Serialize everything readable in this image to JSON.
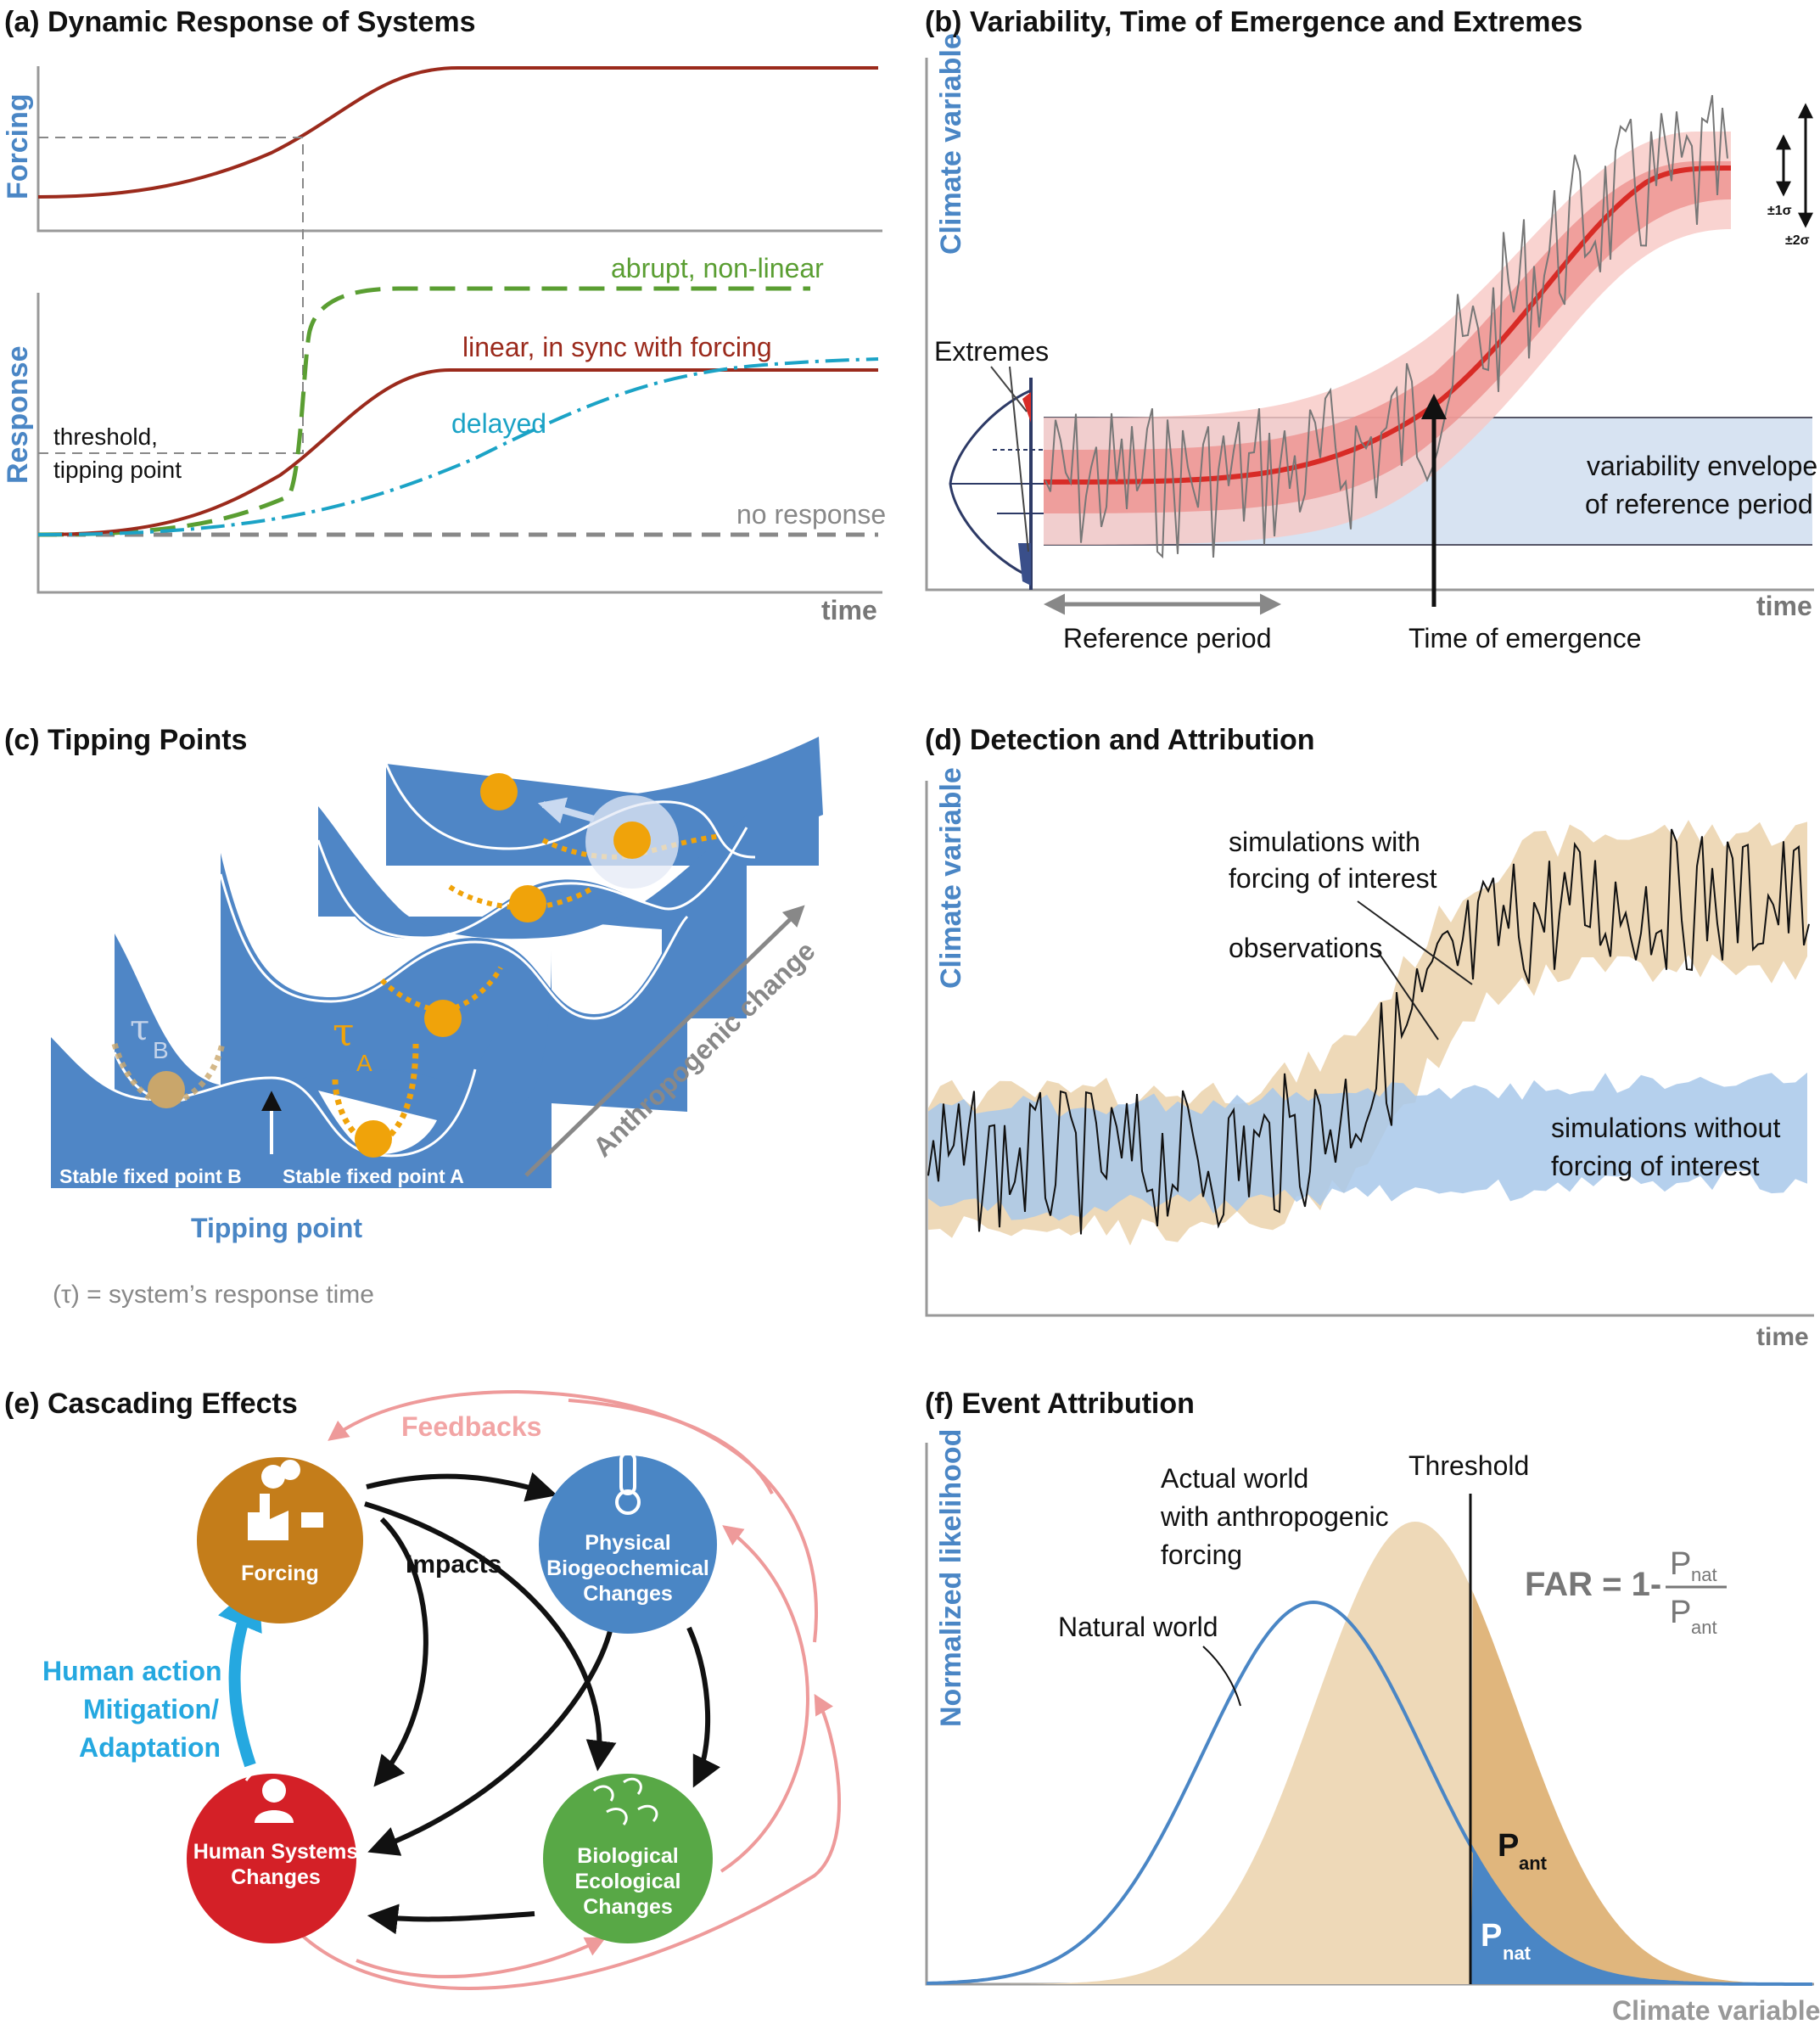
{
  "panels": {
    "a": {
      "title": "(a) Dynamic Response of Systems",
      "y_top": "Forcing",
      "y_bottom": "Response",
      "x": "time",
      "labels": {
        "abrupt": "abrupt, non-linear",
        "linear": "linear, in sync with forcing",
        "delayed": "delayed",
        "none": "no response",
        "threshold_1": "threshold,",
        "threshold_2": "tipping point"
      }
    },
    "b": {
      "title": "(b) Variability, Time of Emergence and Extremes",
      "y": "Climate variable",
      "x": "time",
      "extremes": "Extremes",
      "envelope_1": "variability envelope",
      "envelope_2": "of reference period",
      "reference": "Reference period",
      "emergence": "Time of emergence",
      "sigma1": "±1σ",
      "sigma2": "±2σ"
    },
    "c": {
      "title": "(c) Tipping Points",
      "stable_b": "Stable fixed point B",
      "stable_a": "Stable fixed point A",
      "tipping": "Tipping point",
      "anthro": "Anthropogenic change",
      "tau_b": "τ",
      "tau_b_sub": "B",
      "tau_a": "τ",
      "tau_a_sub": "A",
      "note": "(τ) = system’s response time"
    },
    "d": {
      "title": "(d) Detection and Attribution",
      "y": "Climate variable",
      "x": "time",
      "with_1": "simulations with",
      "with_2": "forcing of interest",
      "obs": "observations",
      "without_1": "simulations without",
      "without_2": "forcing of interest"
    },
    "e": {
      "title": "(e) Cascading Effects",
      "feedbacks": "Feedbacks",
      "impacts": "Impacts",
      "forcing": "Forcing",
      "physical": [
        "Physical",
        "Biogeochemical",
        "Changes"
      ],
      "human": [
        "Human Systems",
        "Changes"
      ],
      "bio": [
        "Biological",
        "Ecological",
        "Changes"
      ],
      "action": [
        "Human action",
        "Mitigation/",
        "Adaptation"
      ]
    },
    "f": {
      "title": "(f) Event Attribution",
      "y": "Normalized likelihood",
      "x": "Climate variable",
      "threshold": "Threshold",
      "actual": [
        "Actual world",
        "with anthropogenic",
        "forcing"
      ],
      "natural": "Natural world",
      "far": "FAR = 1-",
      "p": "P",
      "p_nat_sub": "nat",
      "p_ant_sub": "ant"
    }
  },
  "colors": {
    "blue": "#4a86c5",
    "dark_red": "#9b2a1c",
    "green": "#5a9e32",
    "cyan": "#1ba3c6",
    "grey": "#808080",
    "tan": "#eed9b8",
    "orange": "#f0a30a",
    "forcing_circle": "#c47d1a",
    "physical_circle": "#4a86c5",
    "human_circle": "#d42027",
    "bio_circle": "#58a846",
    "feedback_pink": "#ee9a9a"
  }
}
